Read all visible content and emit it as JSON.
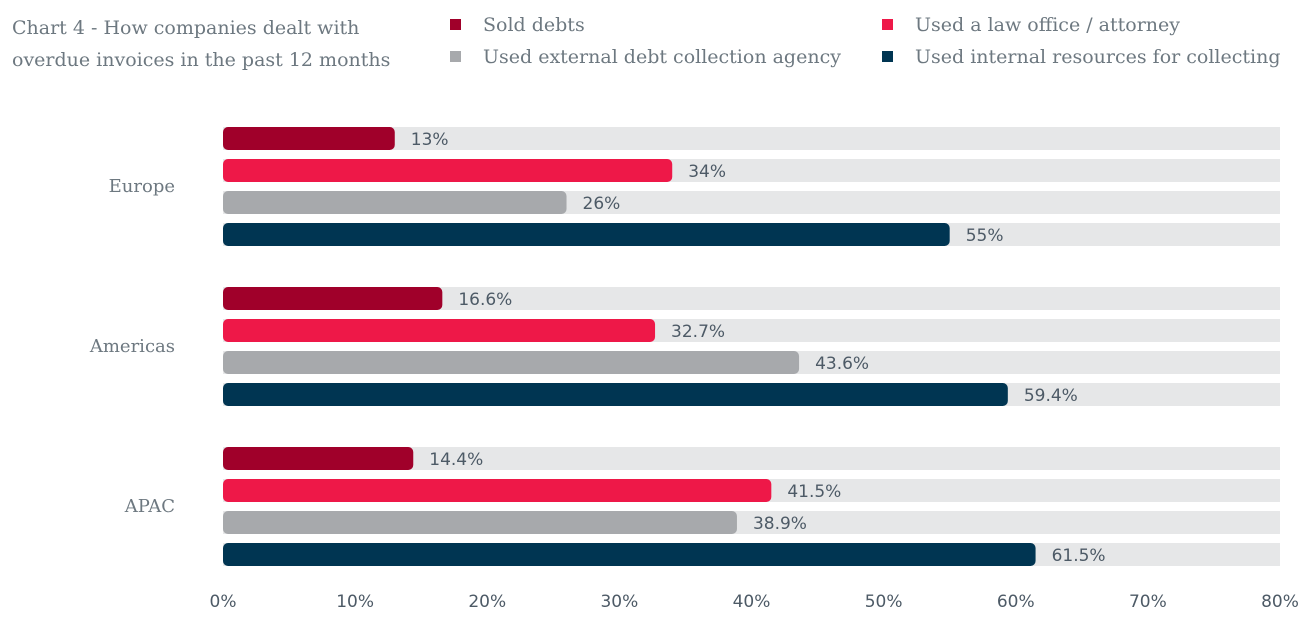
{
  "chart_data": {
    "type": "bar",
    "orientation": "horizontal",
    "title": "Chart 4 - How companies dealt with overdue invoices in the past 12 months",
    "categories": [
      "Europe",
      "Americas",
      "APAC"
    ],
    "series": [
      {
        "name": "Sold debts",
        "color": "#a0002a",
        "values": [
          13,
          16.6,
          14.4
        ],
        "labels": [
          "13%",
          "16.6%",
          "14.4%"
        ]
      },
      {
        "name": "Used a law office / attorney",
        "color": "#ee1848",
        "values": [
          34,
          32.7,
          41.5
        ],
        "labels": [
          "34%",
          "32.7%",
          "41.5%"
        ]
      },
      {
        "name": "Used external debt collection agency",
        "color": "#a7a9ac",
        "values": [
          26,
          43.6,
          38.9
        ],
        "labels": [
          "26%",
          "43.6%",
          "38.9%"
        ]
      },
      {
        "name": "Used internal resources for collecting",
        "color": "#003552",
        "values": [
          55,
          59.4,
          61.5
        ],
        "labels": [
          "55%",
          "59.4%",
          "61.5%"
        ]
      }
    ],
    "xlim": [
      0,
      80
    ],
    "xticks": [
      "0%",
      "10%",
      "20%",
      "30%",
      "40%",
      "50%",
      "60%",
      "70%",
      "80%"
    ],
    "track_color": "#e6e7e8",
    "grid": false,
    "legend_position": "top"
  }
}
